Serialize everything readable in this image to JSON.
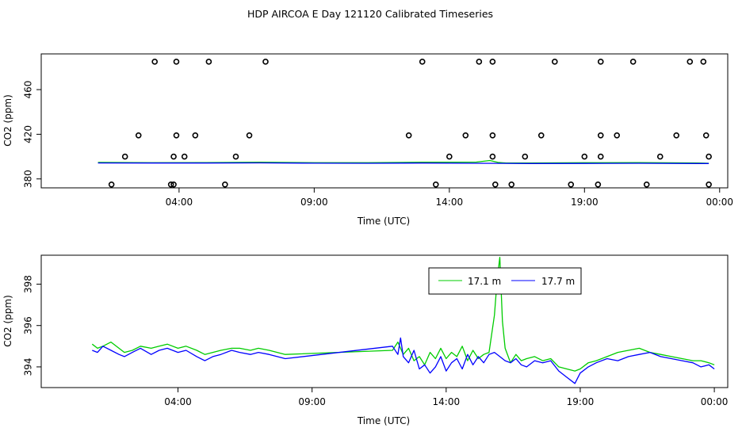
{
  "title": "HDP AIRCOA E  Day 121120  Calibrated Timeseries",
  "chart_data": [
    {
      "type": "scatter",
      "xlabel": "Time (UTC)",
      "ylabel": "CO2 (ppm)",
      "x_unit": "hours since 00:00 (UTC)",
      "xlim": [
        -1.1,
        24.3
      ],
      "ylim": [
        372,
        492
      ],
      "x_ticks": [
        {
          "value": 4,
          "label": "04:00"
        },
        {
          "value": 9,
          "label": "09:00"
        },
        {
          "value": 14,
          "label": "14:00"
        },
        {
          "value": 19,
          "label": "19:00"
        },
        {
          "value": 24,
          "label": "00:00"
        }
      ],
      "y_ticks": [
        {
          "value": 380,
          "label": "380"
        },
        {
          "value": 420,
          "label": "420"
        },
        {
          "value": 460,
          "label": "460"
        }
      ],
      "points": [
        [
          1.5,
          375
        ],
        [
          2.0,
          400
        ],
        [
          2.5,
          419
        ],
        [
          3.1,
          485
        ],
        [
          3.7,
          375
        ],
        [
          4.2,
          400
        ],
        [
          3.8,
          400
        ],
        [
          3.9,
          419
        ],
        [
          3.9,
          485
        ],
        [
          3.8,
          375
        ],
        [
          4.6,
          419
        ],
        [
          5.1,
          485
        ],
        [
          5.7,
          375
        ],
        [
          6.1,
          400
        ],
        [
          6.6,
          419
        ],
        [
          7.2,
          485
        ],
        [
          12.5,
          419
        ],
        [
          13.0,
          485
        ],
        [
          13.5,
          375
        ],
        [
          14.0,
          400
        ],
        [
          14.6,
          419
        ],
        [
          15.1,
          485
        ],
        [
          15.6,
          485
        ],
        [
          15.6,
          419
        ],
        [
          15.6,
          400
        ],
        [
          15.7,
          375
        ],
        [
          16.3,
          375
        ],
        [
          16.8,
          400
        ],
        [
          17.4,
          419
        ],
        [
          17.9,
          485
        ],
        [
          18.5,
          375
        ],
        [
          19.0,
          400
        ],
        [
          19.5,
          375
        ],
        [
          19.6,
          400
        ],
        [
          19.6,
          419
        ],
        [
          19.6,
          485
        ],
        [
          20.2,
          419
        ],
        [
          20.8,
          485
        ],
        [
          21.3,
          375
        ],
        [
          21.8,
          400
        ],
        [
          22.4,
          419
        ],
        [
          22.9,
          485
        ],
        [
          23.4,
          485
        ],
        [
          23.5,
          419
        ],
        [
          23.6,
          400
        ],
        [
          23.6,
          375
        ]
      ],
      "series": [
        {
          "name": "17.1 m",
          "color": "#00cc00",
          "x": [
            1.0,
            3.0,
            5.0,
            7.0,
            9.0,
            11.0,
            13.0,
            15.0,
            15.5,
            15.8,
            16.1,
            17.0,
            19.0,
            21.0,
            23.2,
            23.6
          ],
          "y": [
            394.8,
            394.5,
            394.6,
            394.9,
            394.5,
            394.5,
            394.9,
            395.1,
            396.5,
            394.8,
            394.2,
            394.2,
            394.5,
            394.6,
            394.2,
            394.0
          ]
        },
        {
          "name": "17.7 m",
          "color": "#0000ff",
          "x": [
            1.0,
            3.0,
            5.0,
            7.0,
            9.0,
            11.0,
            13.0,
            15.0,
            17.0,
            19.0,
            21.0,
            23.2,
            23.6
          ],
          "y": [
            394.3,
            394.2,
            394.2,
            394.4,
            394.1,
            394.0,
            394.2,
            394.0,
            393.8,
            393.9,
            394.0,
            393.8,
            393.8
          ]
        }
      ]
    },
    {
      "type": "line",
      "xlabel": "Time (UTC)",
      "ylabel": "CO2 (ppm)",
      "x_unit": "hours since 00:00 (UTC)",
      "xlim": [
        -1.1,
        24.5
      ],
      "ylim": [
        393.0,
        399.4
      ],
      "x_ticks": [
        {
          "value": 4,
          "label": "04:00"
        },
        {
          "value": 9,
          "label": "09:00"
        },
        {
          "value": 14,
          "label": "14:00"
        },
        {
          "value": 19,
          "label": "19:00"
        },
        {
          "value": 24,
          "label": "00:00"
        }
      ],
      "y_ticks": [
        {
          "value": 394,
          "label": "394"
        },
        {
          "value": 396,
          "label": "396"
        },
        {
          "value": 398,
          "label": "398"
        }
      ],
      "legend_position": "top-right",
      "series": [
        {
          "name": "17.1 m",
          "color": "#00cc00",
          "x": [
            0.8,
            1.0,
            1.2,
            1.5,
            1.8,
            2.0,
            2.3,
            2.6,
            3.0,
            3.3,
            3.6,
            4.0,
            4.3,
            4.7,
            5.0,
            5.3,
            5.6,
            6.0,
            6.3,
            6.7,
            7.0,
            7.4,
            7.7,
            8.0,
            12.0,
            12.2,
            12.4,
            12.6,
            12.8,
            13.0,
            13.2,
            13.4,
            13.6,
            13.8,
            14.0,
            14.2,
            14.4,
            14.6,
            14.8,
            15.0,
            15.2,
            15.4,
            15.6,
            15.8,
            15.9,
            16.0,
            16.1,
            16.2,
            16.4,
            16.6,
            16.8,
            17.0,
            17.3,
            17.6,
            17.9,
            18.2,
            18.5,
            18.8,
            19.0,
            19.3,
            19.6,
            20.0,
            20.4,
            20.8,
            21.2,
            21.6,
            22.0,
            22.4,
            22.8,
            23.2,
            23.5,
            23.8,
            24.0
          ],
          "y": [
            395.1,
            394.9,
            395.0,
            395.2,
            394.9,
            394.7,
            394.8,
            395.0,
            394.9,
            395.0,
            395.1,
            394.9,
            395.0,
            394.8,
            394.6,
            394.7,
            394.8,
            394.9,
            394.9,
            394.8,
            394.9,
            394.8,
            394.7,
            394.6,
            394.8,
            395.2,
            394.6,
            394.9,
            394.3,
            394.5,
            394.1,
            394.7,
            394.4,
            394.9,
            394.4,
            394.7,
            394.5,
            395.0,
            394.3,
            394.8,
            394.4,
            394.6,
            394.7,
            396.5,
            398.2,
            399.3,
            396.2,
            394.9,
            394.2,
            394.6,
            394.3,
            394.4,
            394.5,
            394.3,
            394.4,
            394.0,
            393.9,
            393.8,
            393.9,
            394.2,
            394.3,
            394.5,
            394.7,
            394.8,
            394.9,
            394.7,
            394.6,
            394.5,
            394.4,
            394.3,
            394.3,
            394.2,
            394.1
          ]
        },
        {
          "name": "17.7 m",
          "color": "#0000ff",
          "x": [
            0.8,
            1.0,
            1.2,
            1.5,
            1.8,
            2.0,
            2.3,
            2.6,
            3.0,
            3.3,
            3.6,
            4.0,
            4.3,
            4.7,
            5.0,
            5.3,
            5.6,
            6.0,
            6.3,
            6.7,
            7.0,
            7.4,
            7.7,
            8.0,
            12.0,
            12.2,
            12.3,
            12.4,
            12.6,
            12.8,
            13.0,
            13.2,
            13.4,
            13.6,
            13.8,
            14.0,
            14.2,
            14.4,
            14.6,
            14.8,
            15.0,
            15.2,
            15.4,
            15.6,
            15.8,
            16.0,
            16.2,
            16.4,
            16.6,
            16.8,
            17.0,
            17.3,
            17.6,
            17.9,
            18.2,
            18.5,
            18.8,
            19.0,
            19.3,
            19.6,
            20.0,
            20.4,
            20.8,
            21.2,
            21.6,
            22.0,
            22.4,
            22.8,
            23.2,
            23.5,
            23.8,
            24.0
          ],
          "y": [
            394.8,
            394.7,
            395.0,
            394.8,
            394.6,
            394.5,
            394.7,
            394.9,
            394.6,
            394.8,
            394.9,
            394.7,
            394.8,
            394.5,
            394.3,
            394.5,
            394.6,
            394.8,
            394.7,
            394.6,
            394.7,
            394.6,
            394.5,
            394.4,
            395.0,
            394.6,
            395.4,
            394.5,
            394.2,
            394.8,
            393.9,
            394.1,
            393.7,
            394.0,
            394.5,
            393.8,
            394.2,
            394.4,
            393.9,
            394.6,
            394.1,
            394.5,
            394.2,
            394.6,
            394.7,
            394.5,
            394.3,
            394.2,
            394.4,
            394.1,
            394.0,
            394.3,
            394.2,
            394.3,
            393.8,
            393.5,
            393.2,
            393.7,
            394.0,
            394.2,
            394.4,
            394.3,
            394.5,
            394.6,
            394.7,
            394.5,
            394.4,
            394.3,
            394.2,
            394.0,
            394.1,
            393.9
          ]
        }
      ],
      "legend": [
        {
          "label": "17.1 m",
          "color": "#00cc00"
        },
        {
          "label": "17.7 m",
          "color": "#0000ff"
        }
      ]
    }
  ]
}
